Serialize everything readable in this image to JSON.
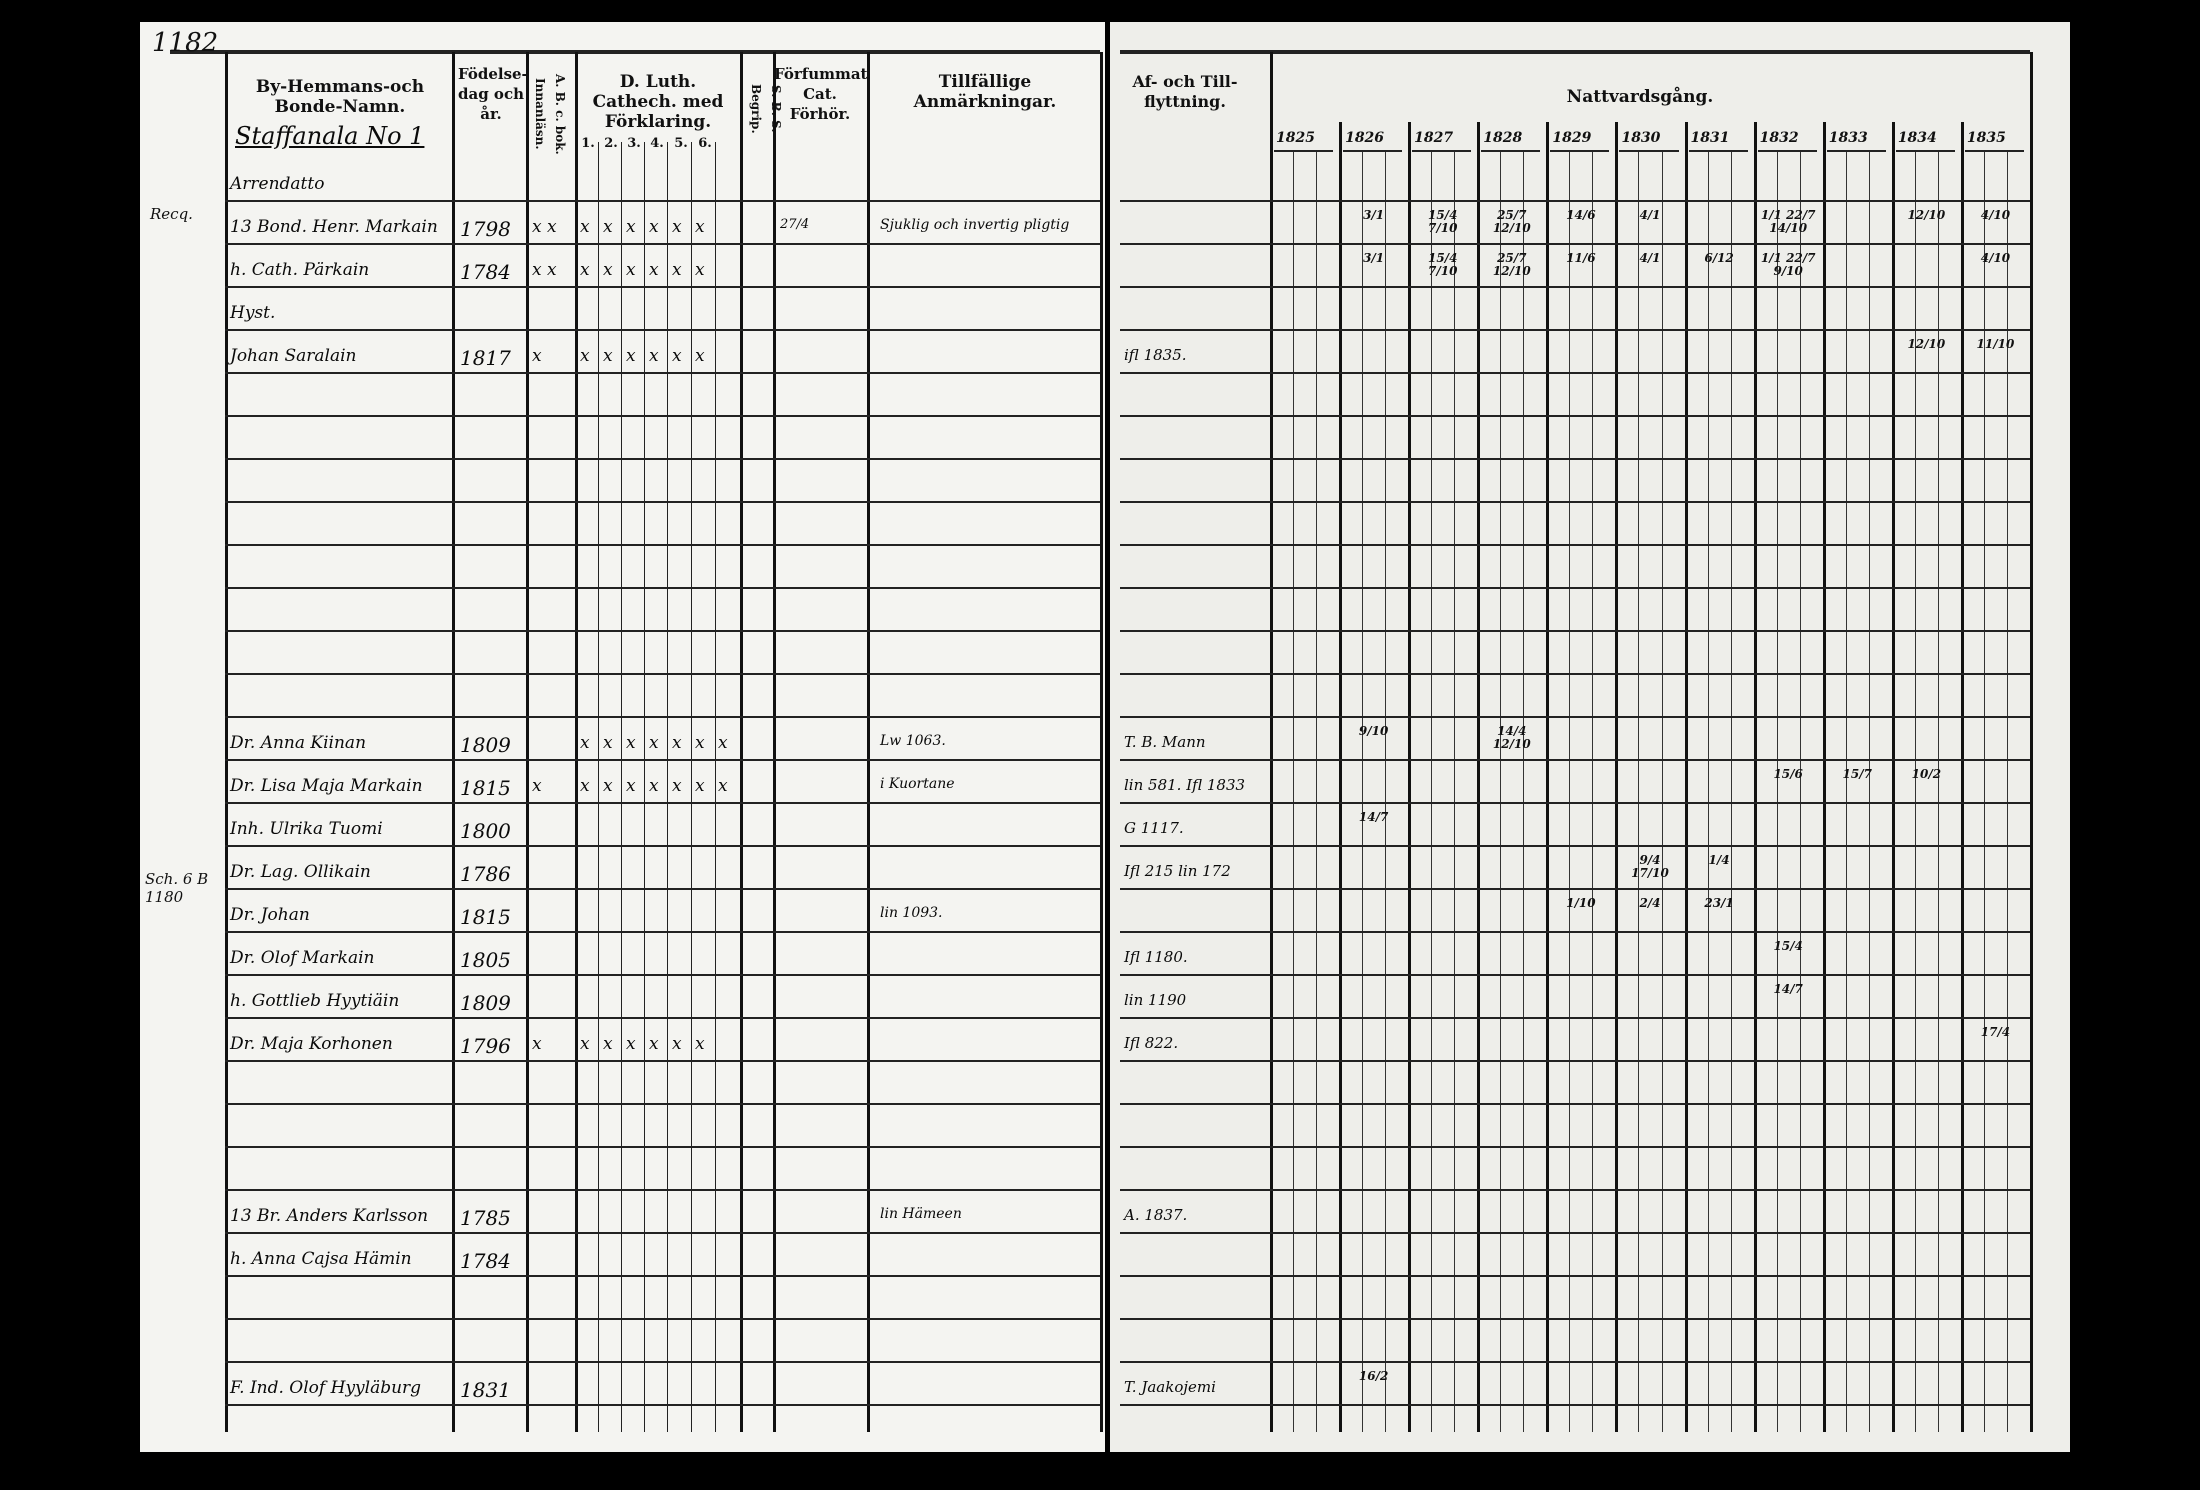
{
  "page_number": "1182",
  "left_page": {
    "headers": {
      "name": "By-Hemmans-och Bonde-Namn.",
      "birth": "Födelse-dag och år.",
      "abc": "A. B. c. bok. Innanläsn.",
      "catechism": "D. Luth. Cathech. med Förklaring.",
      "catechism_parts": [
        "1.",
        "2.",
        "3.",
        "4.",
        "5.",
        "6."
      ],
      "sbs": "S. B. S. Begrip.",
      "missed": "Förfummat Cat. Förhör.",
      "remarks": "Tillfällige Anmärkningar."
    },
    "village": "Staffanala No 1",
    "rows": [
      {
        "name": "Arrendatto"
      },
      {
        "name": "13 Bond. Henr. Markain",
        "birth": "1798",
        "abc": "x x",
        "cat": "x x x x x x",
        "missed": "27/4",
        "remarks": "Sjuklig och invertig pligtig"
      },
      {
        "name": "h. Cath. Pärkain",
        "birth": "1784",
        "abc": "x x",
        "cat": "x x x x x x"
      },
      {
        "name": "Hyst."
      },
      {
        "name": "Johan Saralain",
        "birth": "1817",
        "abc": "x",
        "cat": "x x x x x x"
      },
      {},
      {},
      {},
      {},
      {},
      {},
      {},
      {},
      {
        "name": "Dr. Anna Kiinan",
        "birth": "1809",
        "cat": "x x x x x x x",
        "remarks": "Lw 1063."
      },
      {
        "name": "Dr. Lisa Maja Markain",
        "birth": "1815",
        "abc": "x",
        "cat": "x x x x x x x",
        "remarks": "i Kuortane"
      },
      {
        "name": "Inh. Ulrika Tuomi",
        "birth": "1800"
      },
      {
        "name": "Dr. Lag. Ollikain",
        "birth": "1786"
      },
      {
        "name": "Dr. Johan",
        "birth": "1815",
        "remarks": "lin 1093."
      },
      {
        "name": "Dr. Olof Markain",
        "birth": "1805"
      },
      {
        "name": "h. Gottlieb Hyytiäin",
        "birth": "1809"
      },
      {
        "name": "Dr. Maja Korhonen",
        "birth": "1796",
        "abc": "x",
        "cat": "x x x x x x"
      },
      {},
      {},
      {},
      {
        "name": "13 Br. Anders Karlsson",
        "birth": "1785",
        "remarks": "lin Hämeen"
      },
      {
        "name": "h. Anna Cajsa Hämin",
        "birth": "1784"
      },
      {},
      {},
      {
        "name": "F. Ind. Olof Hyyläburg",
        "birth": "1831"
      }
    ],
    "margin_notes": [
      "Recq.",
      "Sch. 6 B 1180"
    ]
  },
  "right_page": {
    "headers": {
      "moves": "Af- och Till-flyttning.",
      "communion": "Nattvardsgång.",
      "years": [
        "1825",
        "1826",
        "1827",
        "1828",
        "1829",
        "1830",
        "1831",
        "1832",
        "1833",
        "1834",
        "1835"
      ]
    },
    "rows": [
      {},
      {
        "dates": [
          "",
          "3/1",
          "15/4 7/10",
          "25/7 12/10",
          "14/6",
          "4/1",
          "",
          "1/1 22/7 14/10",
          "",
          "12/10",
          "4/10"
        ]
      },
      {
        "dates": [
          "",
          "3/1",
          "15/4 7/10",
          "25/7 12/10",
          "11/6",
          "4/1",
          "6/12",
          "1/1 22/7 9/10",
          "",
          "",
          "4/10"
        ]
      },
      {},
      {
        "moves": "ifl 1835.",
        "dates": [
          "",
          "",
          "",
          "",
          "",
          "",
          "",
          "",
          "",
          "12/10",
          "11/10"
        ]
      },
      {},
      {},
      {},
      {},
      {},
      {},
      {},
      {},
      {
        "moves": "T. B. Mann",
        "dates": [
          "",
          "9/10",
          "",
          "14/4 12/10",
          "",
          "",
          "",
          "",
          "",
          "",
          ""
        ]
      },
      {
        "moves": "lin 581. Ifl 1833",
        "dates": [
          "",
          "",
          "",
          "",
          "",
          "",
          "",
          "15/6",
          "15/7",
          "10/2",
          ""
        ]
      },
      {
        "moves": "G 1117.",
        "dates": [
          "",
          "14/7",
          "",
          "",
          "",
          "",
          "",
          "",
          "",
          "",
          ""
        ]
      },
      {
        "moves": "Ifl 215 lin 172",
        "dates": [
          "",
          "",
          "",
          "",
          "",
          "9/4 17/10",
          "1/4",
          "",
          "",
          "",
          ""
        ]
      },
      {
        "dates": [
          "",
          "",
          "",
          "",
          "1/10",
          "2/4",
          "23/1",
          "",
          "",
          "",
          ""
        ]
      },
      {
        "moves": "Ifl 1180.",
        "dates": [
          "",
          "",
          "",
          "",
          "",
          "",
          "",
          "15/4",
          "",
          "",
          ""
        ]
      },
      {
        "moves": "lin 1190",
        "dates": [
          "",
          "",
          "",
          "",
          "",
          "",
          "",
          "14/7",
          "",
          "",
          ""
        ]
      },
      {
        "moves": "Ifl 822.",
        "dates": [
          "",
          "",
          "",
          "",
          "",
          "",
          "",
          "",
          "",
          "",
          "17/4"
        ]
      },
      {},
      {},
      {},
      {
        "moves": "A. 1837."
      },
      {},
      {},
      {},
      {
        "moves": "T. Jaakojemi",
        "dates": [
          "",
          "16/2",
          "",
          "",
          "",
          "",
          "",
          "",
          "",
          "",
          ""
        ]
      }
    ]
  }
}
